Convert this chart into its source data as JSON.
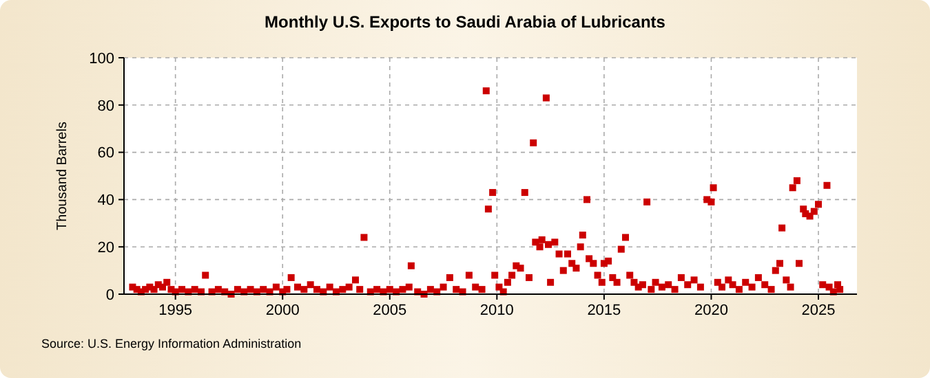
{
  "chart_data": {
    "type": "scatter",
    "title": "Monthly U.S. Exports to Saudi Arabia of Lubricants",
    "ylabel": "Thousand Barrels",
    "annotations": [
      "Source: U.S. Energy Information Administration"
    ],
    "x": [
      1993.0,
      1993.2,
      1993.4,
      1993.6,
      1993.8,
      1994.0,
      1994.2,
      1994.4,
      1994.6,
      1994.8,
      1995.0,
      1995.3,
      1995.6,
      1995.9,
      1996.2,
      1996.4,
      1996.7,
      1997.0,
      1997.3,
      1997.6,
      1997.9,
      1998.2,
      1998.5,
      1998.8,
      1999.1,
      1999.4,
      1999.7,
      2000.0,
      2000.2,
      2000.4,
      2000.7,
      2001.0,
      2001.3,
      2001.6,
      2001.9,
      2002.2,
      2002.5,
      2002.8,
      2003.1,
      2003.4,
      2003.6,
      2003.8,
      2004.1,
      2004.4,
      2004.7,
      2005.0,
      2005.3,
      2005.6,
      2005.9,
      2006.0,
      2006.3,
      2006.6,
      2006.9,
      2007.2,
      2007.5,
      2007.8,
      2008.1,
      2008.4,
      2008.7,
      2009.0,
      2009.3,
      2009.5,
      2009.6,
      2009.8,
      2009.9,
      2010.1,
      2010.3,
      2010.5,
      2010.7,
      2010.9,
      2011.1,
      2011.3,
      2011.5,
      2011.7,
      2011.8,
      2012.0,
      2012.1,
      2012.3,
      2012.4,
      2012.5,
      2012.7,
      2012.9,
      2013.1,
      2013.3,
      2013.5,
      2013.7,
      2013.9,
      2014.0,
      2014.2,
      2014.3,
      2014.5,
      2014.7,
      2014.9,
      2015.0,
      2015.2,
      2015.4,
      2015.6,
      2015.8,
      2016.0,
      2016.2,
      2016.4,
      2016.6,
      2016.8,
      2017.0,
      2017.2,
      2017.4,
      2017.7,
      2018.0,
      2018.3,
      2018.6,
      2018.9,
      2019.2,
      2019.5,
      2019.8,
      2020.0,
      2020.1,
      2020.3,
      2020.5,
      2020.8,
      2021.0,
      2021.3,
      2021.6,
      2021.9,
      2022.2,
      2022.5,
      2022.8,
      2023.0,
      2023.2,
      2023.3,
      2023.5,
      2023.7,
      2023.8,
      2024.0,
      2024.1,
      2024.3,
      2024.4,
      2024.6,
      2024.8,
      2025.0,
      2025.2,
      2025.4,
      2025.5,
      2025.7,
      2025.9,
      2026.0
    ],
    "series": [
      {
        "color": "#cc0000",
        "values": [
          3,
          2,
          1,
          2,
          3,
          2,
          4,
          3,
          5,
          2,
          1,
          2,
          1,
          2,
          1,
          8,
          1,
          2,
          1,
          0,
          2,
          1,
          2,
          1,
          2,
          1,
          3,
          1,
          2,
          7,
          3,
          2,
          4,
          2,
          1,
          3,
          1,
          2,
          3,
          6,
          2,
          24,
          1,
          2,
          1,
          2,
          1,
          2,
          3,
          12,
          1,
          0,
          2,
          1,
          3,
          7,
          2,
          1,
          8,
          3,
          2,
          86,
          36,
          43,
          8,
          3,
          1,
          5,
          8,
          12,
          11,
          43,
          7,
          64,
          22,
          20,
          23,
          83,
          21,
          5,
          22,
          17,
          10,
          17,
          13,
          11,
          20,
          25,
          40,
          15,
          13,
          8,
          5,
          13,
          14,
          7,
          5,
          19,
          24,
          8,
          5,
          3,
          4,
          39,
          2,
          5,
          3,
          4,
          2,
          7,
          4,
          6,
          3,
          40,
          39,
          45,
          5,
          3,
          6,
          4,
          2,
          5,
          3,
          7,
          4,
          2,
          10,
          13,
          28,
          6,
          3,
          45,
          48,
          13,
          36,
          34,
          33,
          35,
          38,
          4,
          46,
          3,
          1,
          4,
          2
        ]
      }
    ],
    "xlim": [
      1992.6,
      2026.8
    ],
    "xticks": [
      1995,
      2000,
      2005,
      2010,
      2015,
      2020,
      2025
    ],
    "ylim": [
      0,
      100
    ],
    "yticks": [
      0,
      20,
      40,
      60,
      80,
      100
    ],
    "grid": true,
    "marker": "square"
  }
}
